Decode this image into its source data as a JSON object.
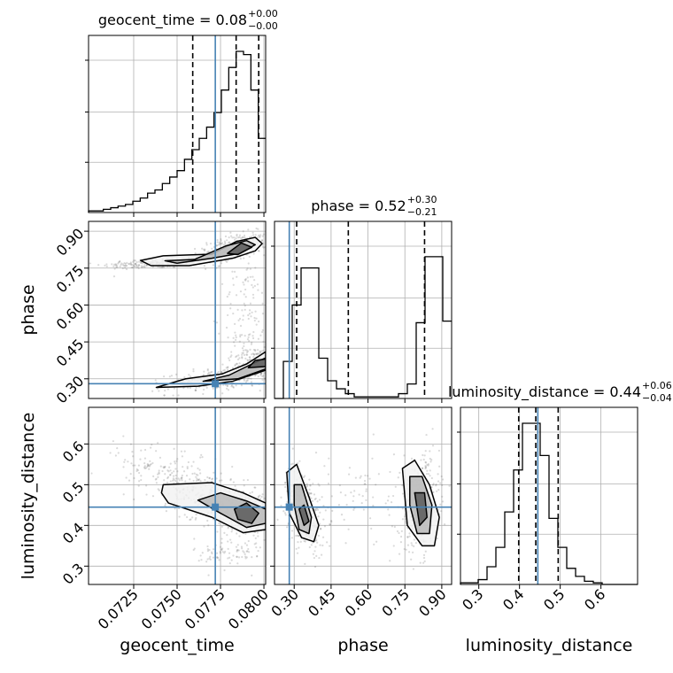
{
  "chart_data": {
    "type": "corner",
    "parameters": [
      "geocent_time",
      "phase",
      "luminosity_distance"
    ],
    "truths": {
      "geocent_time": 0.0772,
      "phase": 0.28,
      "luminosity_distance": 0.445
    },
    "colors": {
      "truth": "#4682b4",
      "hist": "#000000",
      "grid": "#b0b0b0",
      "scatter": "#555555"
    },
    "ranges": {
      "geocent_time": [
        0.0699,
        0.0801
      ],
      "phase": [
        0.22,
        0.94
      ],
      "luminosity_distance": [
        0.255,
        0.69
      ]
    },
    "titles": {
      "geocent_time": {
        "text": "geocent_time = 0.08",
        "plus": "+0.00",
        "minus": "−0.00"
      },
      "phase": {
        "text": "phase = 0.52",
        "plus": "+0.30",
        "minus": "−0.21"
      },
      "luminosity_distance": {
        "text": "luminosity_distance = 0.44",
        "plus": "+0.06",
        "minus": "−0.04"
      }
    },
    "quantiles": {
      "geocent_time": [
        0.0759,
        0.0784,
        0.0797
      ],
      "phase": [
        0.31,
        0.52,
        0.83
      ],
      "luminosity_distance": [
        0.398,
        0.44,
        0.495
      ]
    },
    "ticks": {
      "geocent_time": {
        "values": [
          0.0725,
          0.075,
          0.0775,
          0.08
        ],
        "labels": [
          "0.0725",
          "0.0750",
          "0.0775",
          "0.0800"
        ]
      },
      "phase": {
        "values": [
          0.3,
          0.45,
          0.6,
          0.75,
          0.9
        ],
        "labels": [
          "0.30",
          "0.45",
          "0.60",
          "0.75",
          "0.90"
        ]
      },
      "luminosity_distance": {
        "values": [
          0.3,
          0.4,
          0.5,
          0.6
        ],
        "labels": [
          "0.3",
          "0.4",
          "0.5",
          "0.6"
        ]
      }
    },
    "histograms": {
      "geocent_time": {
        "density": [
          1,
          1,
          2,
          3,
          4,
          5,
          7,
          9,
          12,
          14,
          18,
          22,
          26,
          33,
          39,
          46,
          53,
          62,
          76,
          90,
          100,
          98,
          76,
          46
        ]
      },
      "phase": {
        "density": [
          0,
          23,
          58,
          81,
          81,
          25,
          11,
          6,
          3,
          1,
          1,
          1,
          1,
          1,
          3,
          9,
          47,
          88,
          88,
          48
        ]
      },
      "luminosity_distance": {
        "density": [
          1,
          1,
          3,
          11,
          23,
          45,
          71,
          100,
          100,
          80,
          41,
          23,
          10,
          5,
          2,
          1,
          0,
          0,
          0,
          0
        ]
      }
    },
    "scatter_clouds": {
      "geocent_time_phase": [
        {
          "cx": 0.0737,
          "cy": 0.77,
          "sx": 0.0015,
          "sy": 0.012,
          "rho": 0.4,
          "n": 200
        },
        {
          "cx": 0.0782,
          "cy": 0.83,
          "sx": 0.001,
          "sy": 0.03,
          "rho": 0.5,
          "n": 300
        },
        {
          "cx": 0.0776,
          "cy": 0.3,
          "sx": 0.0016,
          "sy": 0.025,
          "rho": 0.5,
          "n": 300
        },
        {
          "cx": 0.0795,
          "cy": 0.37,
          "sx": 0.0006,
          "sy": 0.03,
          "rho": 0.2,
          "n": 200
        },
        {
          "cx": 0.079,
          "cy": 0.55,
          "sx": 0.0007,
          "sy": 0.12,
          "rho": 0.0,
          "n": 120
        }
      ],
      "geocent_time_luminosity_distance": [
        {
          "cx": 0.076,
          "cy": 0.49,
          "sx": 0.002,
          "sy": 0.05,
          "rho": -0.7,
          "n": 400
        },
        {
          "cx": 0.079,
          "cy": 0.43,
          "sx": 0.0008,
          "sy": 0.03,
          "rho": -0.3,
          "n": 300
        },
        {
          "cx": 0.078,
          "cy": 0.33,
          "sx": 0.001,
          "sy": 0.02,
          "rho": 0.0,
          "n": 80
        }
      ],
      "phase_luminosity_distance": [
        {
          "cx": 0.34,
          "cy": 0.44,
          "sx": 0.04,
          "sy": 0.05,
          "rho": -0.4,
          "n": 350
        },
        {
          "cx": 0.81,
          "cy": 0.45,
          "sx": 0.04,
          "sy": 0.06,
          "rho": 0.2,
          "n": 350
        },
        {
          "cx": 0.57,
          "cy": 0.47,
          "sx": 0.18,
          "sy": 0.06,
          "rho": 0.0,
          "n": 80
        }
      ]
    },
    "contours": {
      "geocent_time_phase": [
        [
          [
            0.0729,
            0.781
          ],
          [
            0.0742,
            0.8
          ],
          [
            0.077,
            0.807
          ],
          [
            0.0784,
            0.858
          ],
          [
            0.0795,
            0.875
          ],
          [
            0.0799,
            0.85
          ],
          [
            0.0795,
            0.82
          ],
          [
            0.0782,
            0.79
          ],
          [
            0.0757,
            0.76
          ],
          [
            0.0735,
            0.76
          ],
          [
            0.0729,
            0.781
          ]
        ],
        [
          [
            0.0743,
            0.78
          ],
          [
            0.076,
            0.785
          ],
          [
            0.0778,
            0.84
          ],
          [
            0.079,
            0.862
          ],
          [
            0.0795,
            0.845
          ],
          [
            0.0786,
            0.81
          ],
          [
            0.077,
            0.79
          ],
          [
            0.075,
            0.77
          ],
          [
            0.0743,
            0.78
          ]
        ],
        [
          [
            0.0779,
            0.81
          ],
          [
            0.0787,
            0.852
          ],
          [
            0.0793,
            0.835
          ],
          [
            0.0785,
            0.805
          ],
          [
            0.0779,
            0.81
          ]
        ],
        [
          [
            0.0738,
            0.265
          ],
          [
            0.0755,
            0.3
          ],
          [
            0.0776,
            0.32
          ],
          [
            0.079,
            0.36
          ],
          [
            0.0801,
            0.41
          ],
          [
            0.0801,
            0.335
          ],
          [
            0.0782,
            0.29
          ],
          [
            0.0762,
            0.27
          ],
          [
            0.0738,
            0.265
          ]
        ],
        [
          [
            0.0765,
            0.29
          ],
          [
            0.078,
            0.315
          ],
          [
            0.0793,
            0.36
          ],
          [
            0.0801,
            0.385
          ],
          [
            0.0801,
            0.34
          ],
          [
            0.0785,
            0.3
          ],
          [
            0.0765,
            0.29
          ]
        ],
        [
          [
            0.0791,
            0.345
          ],
          [
            0.0795,
            0.375
          ],
          [
            0.0801,
            0.38
          ],
          [
            0.0801,
            0.35
          ],
          [
            0.0791,
            0.345
          ]
        ]
      ],
      "geocent_time_luminosity_distance": [
        [
          [
            0.0741,
            0.48
          ],
          [
            0.0742,
            0.5
          ],
          [
            0.077,
            0.505
          ],
          [
            0.0788,
            0.48
          ],
          [
            0.0801,
            0.455
          ],
          [
            0.0801,
            0.39
          ],
          [
            0.0788,
            0.382
          ],
          [
            0.077,
            0.42
          ],
          [
            0.0745,
            0.455
          ],
          [
            0.0741,
            0.48
          ]
        ],
        [
          [
            0.0762,
            0.462
          ],
          [
            0.0775,
            0.48
          ],
          [
            0.079,
            0.46
          ],
          [
            0.0801,
            0.44
          ],
          [
            0.0801,
            0.405
          ],
          [
            0.079,
            0.395
          ],
          [
            0.0775,
            0.43
          ],
          [
            0.0762,
            0.462
          ]
        ],
        [
          [
            0.0783,
            0.44
          ],
          [
            0.079,
            0.455
          ],
          [
            0.0797,
            0.43
          ],
          [
            0.0793,
            0.405
          ],
          [
            0.0785,
            0.415
          ],
          [
            0.0783,
            0.44
          ]
        ]
      ],
      "phase_luminosity_distance": [
        [
          [
            0.27,
            0.53
          ],
          [
            0.31,
            0.55
          ],
          [
            0.36,
            0.47
          ],
          [
            0.4,
            0.4
          ],
          [
            0.38,
            0.36
          ],
          [
            0.33,
            0.37
          ],
          [
            0.28,
            0.43
          ],
          [
            0.27,
            0.53
          ]
        ],
        [
          [
            0.3,
            0.5
          ],
          [
            0.33,
            0.5
          ],
          [
            0.37,
            0.42
          ],
          [
            0.36,
            0.38
          ],
          [
            0.32,
            0.39
          ],
          [
            0.3,
            0.45
          ],
          [
            0.3,
            0.5
          ]
        ],
        [
          [
            0.32,
            0.44
          ],
          [
            0.34,
            0.45
          ],
          [
            0.36,
            0.41
          ],
          [
            0.34,
            0.4
          ],
          [
            0.32,
            0.44
          ]
        ],
        [
          [
            0.74,
            0.54
          ],
          [
            0.79,
            0.56
          ],
          [
            0.85,
            0.5
          ],
          [
            0.89,
            0.42
          ],
          [
            0.87,
            0.35
          ],
          [
            0.82,
            0.35
          ],
          [
            0.76,
            0.4
          ],
          [
            0.74,
            0.54
          ]
        ],
        [
          [
            0.77,
            0.52
          ],
          [
            0.82,
            0.52
          ],
          [
            0.86,
            0.45
          ],
          [
            0.85,
            0.38
          ],
          [
            0.8,
            0.38
          ],
          [
            0.77,
            0.45
          ],
          [
            0.77,
            0.52
          ]
        ],
        [
          [
            0.79,
            0.48
          ],
          [
            0.83,
            0.48
          ],
          [
            0.84,
            0.42
          ],
          [
            0.81,
            0.4
          ],
          [
            0.79,
            0.48
          ]
        ]
      ]
    }
  }
}
